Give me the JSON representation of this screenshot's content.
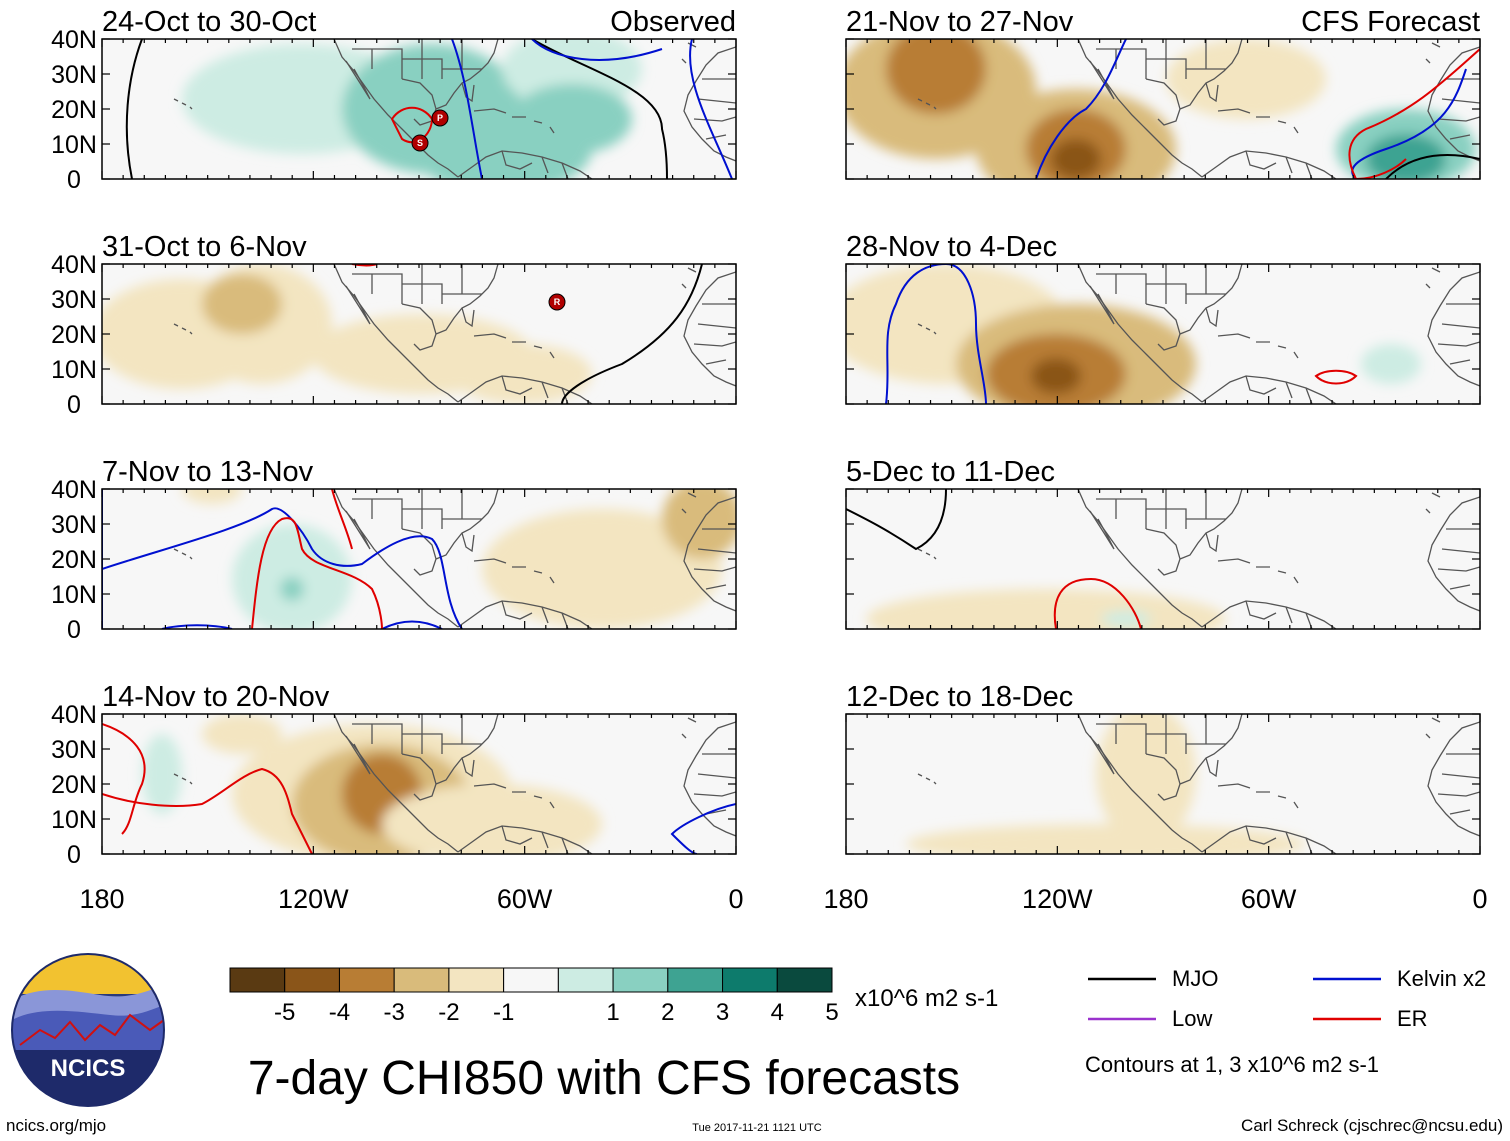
{
  "panels": [
    {
      "title": "24-Oct to 30-Oct",
      "label": "Observed"
    },
    {
      "title": "31-Oct to 6-Nov",
      "label": ""
    },
    {
      "title": "7-Nov to 13-Nov",
      "label": ""
    },
    {
      "title": "14-Nov to 20-Nov",
      "label": ""
    },
    {
      "title": "21-Nov to 27-Nov",
      "label": "CFS Forecast"
    },
    {
      "title": "28-Nov to 4-Dec",
      "label": ""
    },
    {
      "title": "5-Dec to 11-Dec",
      "label": ""
    },
    {
      "title": "12-Dec to 18-Dec",
      "label": ""
    }
  ],
  "lat_labels": [
    "40N",
    "30N",
    "20N",
    "10N",
    "0"
  ],
  "lon_labels": [
    "180",
    "120W",
    "60W",
    "0"
  ],
  "colorbar": {
    "labels": [
      "-5",
      "-4",
      "-3",
      "-2",
      "-1",
      "1",
      "2",
      "3",
      "4",
      "5"
    ],
    "colors": [
      "#5a3a12",
      "#8a5519",
      "#b87d34",
      "#d9bb7b",
      "#f3e5c1",
      "#f7f7f7",
      "#cdece3",
      "#89d0c1",
      "#3ea392",
      "#0d7b6c",
      "#0a4a3e"
    ],
    "units": "x10^6 m2 s-1"
  },
  "legend": {
    "items": [
      {
        "name": "MJO",
        "color": "#000000"
      },
      {
        "name": "Kelvin x2",
        "color": "#0010d0"
      },
      {
        "name": "Low",
        "color": "#9a32cd"
      },
      {
        "name": "ER",
        "color": "#e00000"
      }
    ],
    "note": "Contours at 1, 3 x10^6 m2 s-1"
  },
  "storm_markers": [
    "S",
    "P",
    "R"
  ],
  "logo": {
    "text": "NCICS"
  },
  "main_title": "7-day CHI850 with CFS forecasts",
  "footer": {
    "left": "ncics.org/mjo",
    "center": "Tue 2017-11-21 1121 UTC",
    "right": "Carl Schreck (cjschrec@ncsu.edu)"
  }
}
